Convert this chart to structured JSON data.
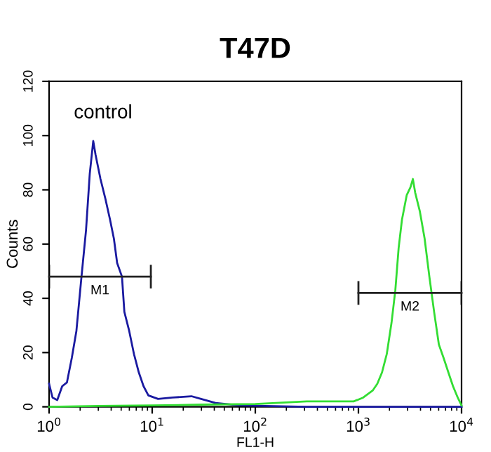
{
  "chart_data": {
    "type": "line",
    "title": "T47D",
    "xlabel": "FL1-H",
    "ylabel": "Counts",
    "log": "x",
    "grid": false,
    "legend": false,
    "xlim": [
      1,
      10000
    ],
    "ylim": [
      0,
      120
    ],
    "xticks": [
      {
        "value": 1,
        "label": "10$^{0}$"
      },
      {
        "value": 10,
        "label": "10$^{1}$"
      },
      {
        "value": 100,
        "label": "10$^{2}$"
      },
      {
        "value": 1000,
        "label": "10$^{3}$"
      },
      {
        "value": 10000,
        "label": "10$^{4}$"
      }
    ],
    "yticks": [
      0,
      20,
      40,
      60,
      80,
      100,
      120
    ],
    "series": [
      {
        "color": "#1a1aa0",
        "x": [
          1,
          1.08,
          1.2,
          1.34,
          1.49,
          1.66,
          1.84,
          2.05,
          2.28,
          2.48,
          2.68,
          2.82,
          3.15,
          3.5,
          3.9,
          4.25,
          4.57,
          5.09,
          5.37,
          5.98,
          6.65,
          7.41,
          8.24,
          9.18,
          11.4,
          15.7,
          24.0,
          29.8,
          41.1,
          70.3,
          316,
          3162,
          10000
        ],
        "values": [
          8.5,
          3.4,
          2.5,
          7.6,
          9,
          18,
          28,
          47,
          65,
          86,
          98,
          93,
          84,
          77,
          69,
          62,
          53,
          48,
          35,
          28,
          19.5,
          12.7,
          7.6,
          4.2,
          2.9,
          3.4,
          3.9,
          2.9,
          1.4,
          0.5,
          0,
          0,
          0
        ]
      },
      {
        "color": "#33dd33",
        "x": [
          1,
          3,
          10,
          30,
          100,
          316,
          900,
          1112,
          1374,
          1525,
          1694,
          1884,
          2094,
          2280,
          2455,
          2644,
          2938,
          3199,
          3373,
          3550,
          3945,
          4385,
          4875,
          5420,
          6025,
          6700,
          7450,
          8265,
          9185,
          10000
        ],
        "values": [
          0,
          0.3,
          0.5,
          0.8,
          1,
          2,
          2,
          3.4,
          6,
          8.5,
          12.7,
          19.5,
          31,
          43,
          58.6,
          69,
          78,
          81,
          84,
          79,
          72,
          62,
          48,
          35,
          23,
          18,
          12.7,
          7.6,
          3.4,
          0.5
        ]
      },
      {
        "name": "M1",
        "color": "#222222",
        "x": [
          1,
          9.7
        ],
        "values": [
          48,
          48
        ],
        "errors": [
          4,
          4
        ]
      },
      {
        "name": "M2",
        "color": "#222222",
        "x": [
          1000,
          10000
        ],
        "values": [
          42,
          42
        ],
        "errors": [
          4,
          4
        ]
      }
    ],
    "annotations": [
      "control"
    ]
  }
}
